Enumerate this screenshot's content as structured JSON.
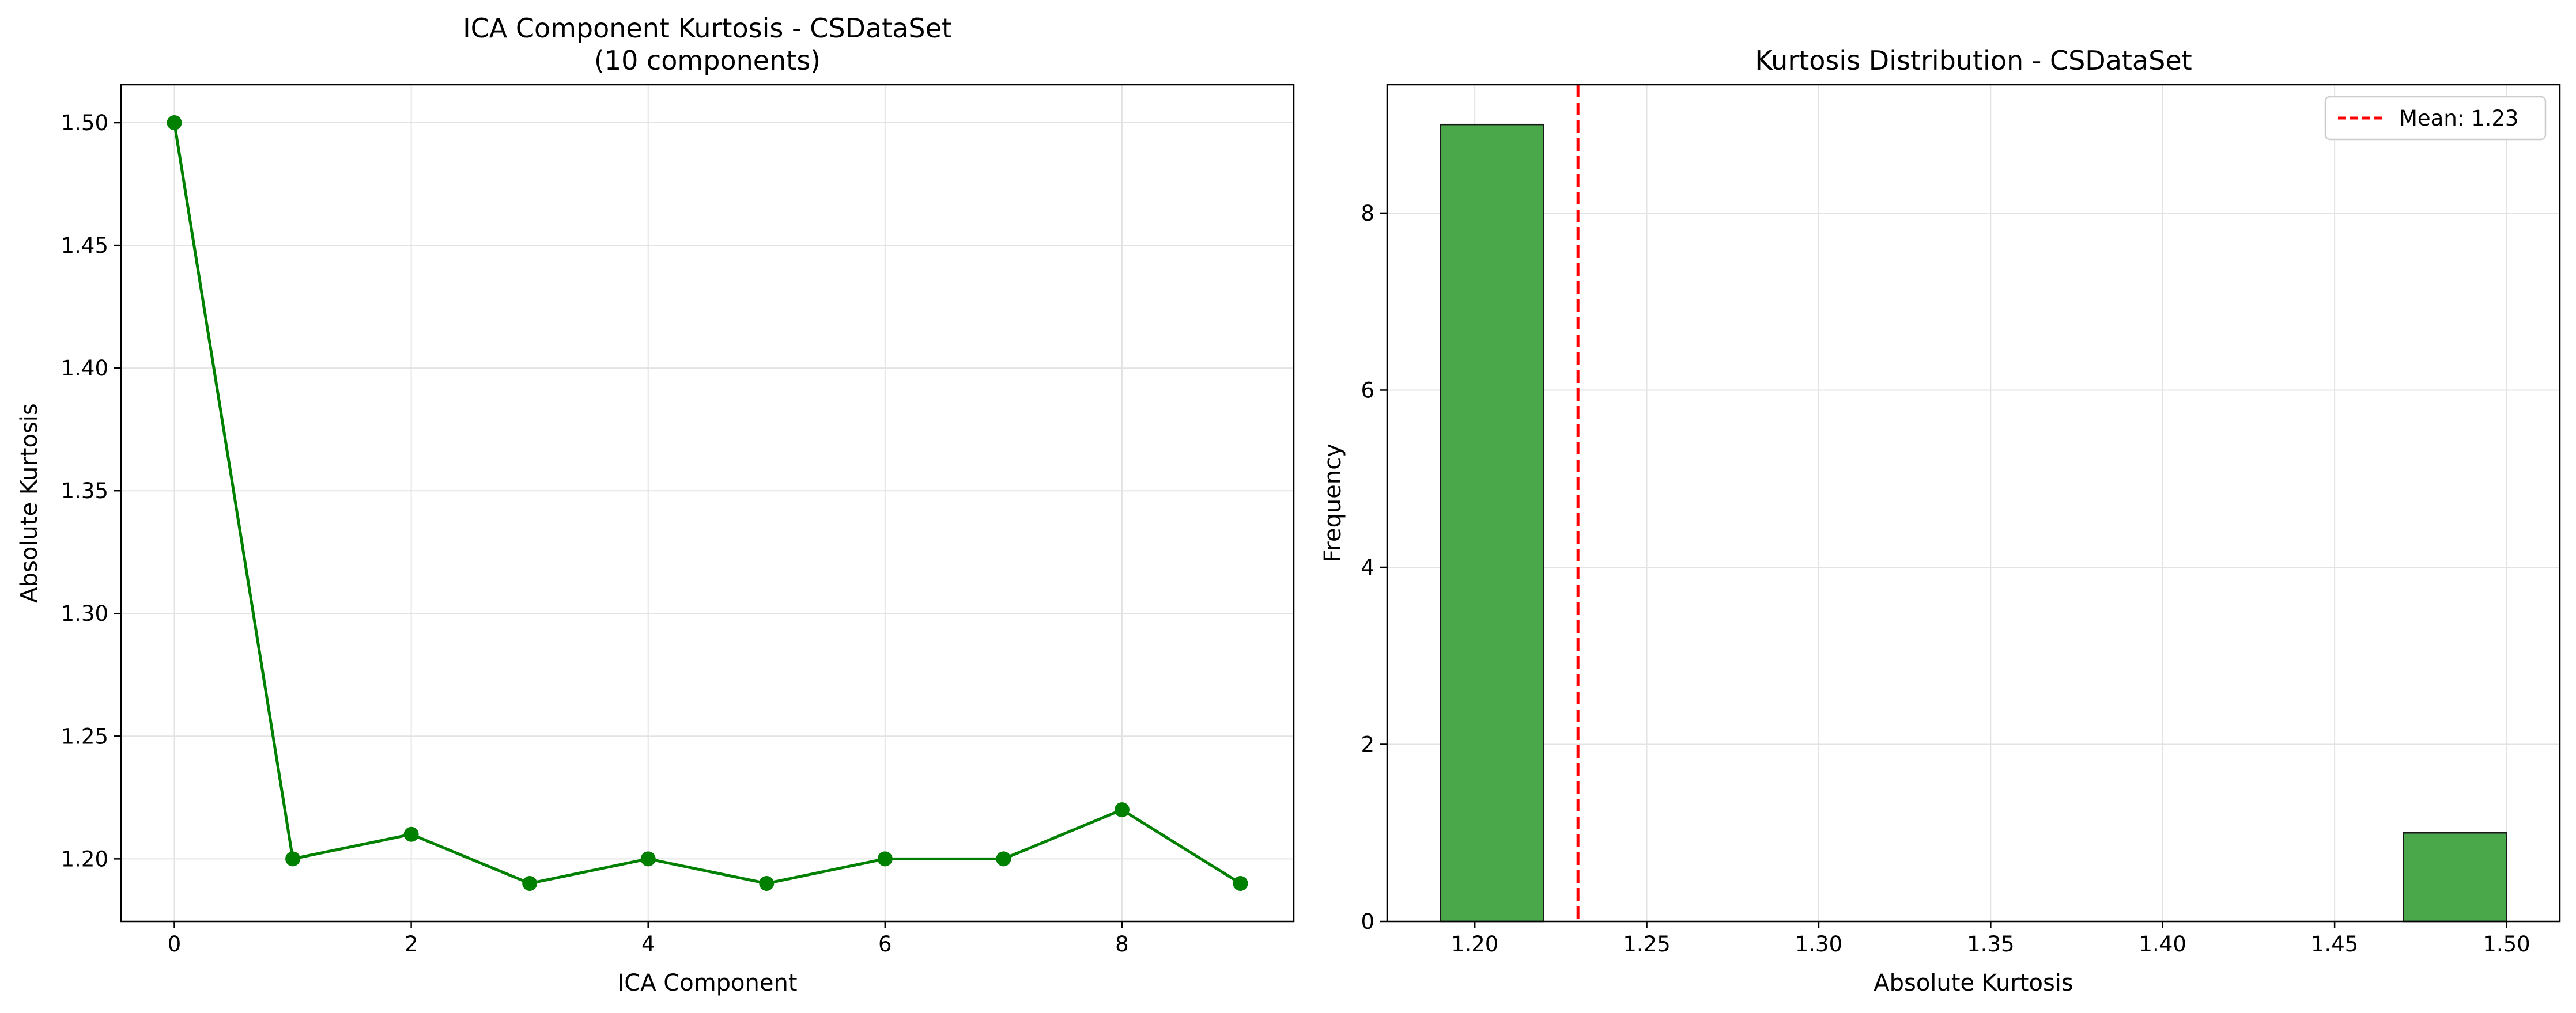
{
  "chart_data": [
    {
      "type": "line",
      "title": "ICA Component Kurtosis - CSDataSet\n(10 components)",
      "title_lines": [
        "ICA Component Kurtosis - CSDataSet",
        "(10 components)"
      ],
      "xlabel": "ICA Component",
      "ylabel": "Absolute Kurtosis",
      "x": [
        0,
        1,
        2,
        3,
        4,
        5,
        6,
        7,
        8,
        9
      ],
      "series": [
        {
          "values": [
            1.5,
            1.2,
            1.21,
            1.19,
            1.2,
            1.19,
            1.2,
            1.2,
            1.22,
            1.19
          ],
          "color": "#008000",
          "marker": "circle"
        }
      ],
      "xlim": [
        -0.45,
        9.45
      ],
      "ylim": [
        1.1745,
        1.5155
      ],
      "xticks": [
        0,
        2,
        4,
        6,
        8
      ],
      "xtick_labels": [
        "0",
        "2",
        "4",
        "6",
        "8"
      ],
      "yticks": [
        1.2,
        1.25,
        1.3,
        1.35,
        1.4,
        1.45,
        1.5
      ],
      "ytick_labels": [
        "1.20",
        "1.25",
        "1.30",
        "1.35",
        "1.40",
        "1.45",
        "1.50"
      ],
      "grid": true
    },
    {
      "type": "bar",
      "subtype": "histogram",
      "title": "Kurtosis Distribution - CSDataSet",
      "xlabel": "Absolute Kurtosis",
      "ylabel": "Frequency",
      "bins": [
        {
          "x0": 1.19,
          "x1": 1.22,
          "count": 9
        },
        {
          "x0": 1.22,
          "x1": 1.25,
          "count": 0
        },
        {
          "x0": 1.25,
          "x1": 1.28,
          "count": 0
        },
        {
          "x0": 1.28,
          "x1": 1.31,
          "count": 0
        },
        {
          "x0": 1.31,
          "x1": 1.34,
          "count": 0
        },
        {
          "x0": 1.34,
          "x1": 1.37,
          "count": 0
        },
        {
          "x0": 1.37,
          "x1": 1.4,
          "count": 0
        },
        {
          "x0": 1.4,
          "x1": 1.43,
          "count": 0
        },
        {
          "x0": 1.43,
          "x1": 1.47,
          "count": 0
        },
        {
          "x0": 1.47,
          "x1": 1.5,
          "count": 1
        }
      ],
      "bar_color": "#4aa84a",
      "edge_color": "#1a1a1a",
      "mean": 1.23,
      "mean_color": "#ff0000",
      "legend": {
        "entries": [
          "Mean: 1.23"
        ],
        "placement": "top-right"
      },
      "xlim": [
        1.1745,
        1.5155
      ],
      "ylim": [
        0,
        9.45
      ],
      "xticks": [
        1.2,
        1.25,
        1.3,
        1.35,
        1.4,
        1.45,
        1.5
      ],
      "xtick_labels": [
        "1.20",
        "1.25",
        "1.30",
        "1.35",
        "1.40",
        "1.45",
        "1.50"
      ],
      "yticks": [
        0,
        2,
        4,
        6,
        8
      ],
      "ytick_labels": [
        "0",
        "2",
        "4",
        "6",
        "8"
      ],
      "grid": true
    }
  ]
}
